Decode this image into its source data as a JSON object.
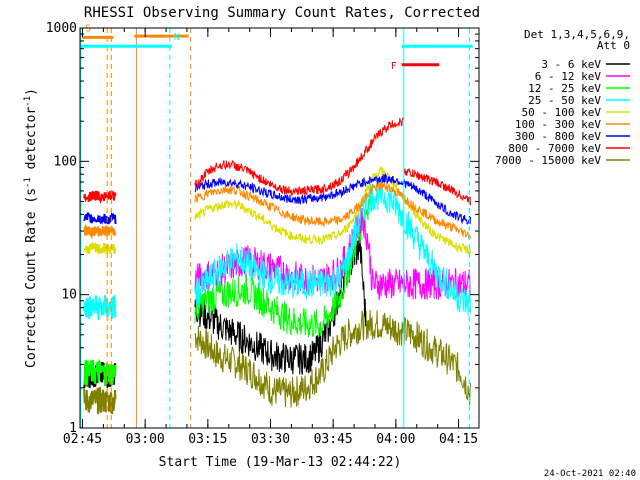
{
  "chart_data": {
    "type": "line",
    "title": "RHESSI Observing Summary Count Rates, Corrected",
    "xlabel": "Start Time (19-Mar-13 02:44:22)",
    "ylabel": "Corrected Count Rate (s",
    "ylabel_sup1": "-1",
    "ylabel_mid": " detector",
    "ylabel_sup2": "-1",
    "ylabel_end": ")",
    "x_ticks_labels": [
      "02:45",
      "03:00",
      "03:15",
      "03:30",
      "03:45",
      "04:00",
      "04:15"
    ],
    "x_ticks_minutes": [
      0.6,
      15.6,
      30.6,
      45.6,
      60.6,
      75.6,
      90.6
    ],
    "y_tick_labels": [
      "1",
      "10",
      "100",
      "1000"
    ],
    "y_tick_values": [
      1,
      10,
      100,
      1000
    ],
    "xlim_minutes": [
      0,
      95.5
    ],
    "ylim": [
      1,
      1000
    ],
    "yscale": "log",
    "legend_header": [
      "Det 1,3,4,5,6,9,",
      "Att 0"
    ],
    "legend_position": "top-right, outside plot",
    "series": [
      {
        "name": "3 - 6 keV",
        "color": "#000000",
        "level": 3.5,
        "segments": [
          {
            "t": [
              27.5,
              33,
              40,
              46,
              50,
              54,
              56,
              58,
              60,
              62,
              64,
              66,
              67,
              68.5
            ],
            "v": [
              8,
              6,
              4.5,
              3.5,
              3.3,
              3.3,
              3.5,
              4.5,
              6,
              10,
              15,
              20,
              24,
              6
            ]
          }
        ]
      },
      {
        "name": "6 - 12 keV",
        "color": "#ff00ff",
        "level": 12,
        "segments": [
          {
            "t": [
              27.5,
              33,
              40,
              46,
              50,
              54,
              58,
              62,
              64,
              66,
              67.5,
              69,
              70,
              72,
              74,
              76,
              78,
              80,
              82,
              84,
              86,
              88,
              90,
              92,
              93.5
            ],
            "v": [
              13,
              15,
              18,
              16,
              14,
              13,
              13,
              15,
              20,
              30,
              40,
              25,
              12,
              12,
              12,
              12,
              12,
              12,
              12,
              12,
              12,
              12,
              12,
              12,
              12
            ]
          }
        ]
      },
      {
        "name": "12 - 25 keV",
        "color": "#00ff00",
        "level": 6,
        "segments": [
          {
            "t": [
              27.5,
              33,
              40,
              46,
              50,
              54,
              58,
              62,
              64,
              66,
              68,
              70
            ],
            "v": [
              8,
              10,
              11,
              8,
              6.5,
              6,
              6,
              9,
              15,
              25,
              40,
              58
            ]
          }
        ]
      },
      {
        "name": "25 - 50 keV",
        "color": "#00ffff",
        "level": 8,
        "segments": [
          {
            "t": [
              27.5,
              31,
              35,
              38,
              42,
              46,
              50,
              54,
              58,
              62,
              64,
              66,
              68,
              69.5
            ],
            "v": [
              10,
              13,
              17,
              19,
              15,
              13,
              12,
              12,
              12,
              13,
              18,
              30,
              45,
              55
            ]
          },
          {
            "t": [
              69.5,
              72,
              74,
              76,
              78,
              80,
              82,
              84,
              86,
              88,
              90,
              92,
              93.5
            ],
            "v": [
              55,
              56,
              53,
              45,
              36,
              28,
              22,
              17,
              14,
              12,
              10,
              9,
              8.5
            ]
          }
        ]
      },
      {
        "name": "50 - 100 keV",
        "color": "#dddd00",
        "level": 22,
        "segments": [
          {
            "t": [
              27.5,
              31,
              35,
              38,
              42,
              46,
              50,
              54,
              58,
              62,
              64,
              66,
              68,
              70,
              72,
              74,
              76,
              78,
              80,
              82,
              84,
              86,
              88,
              90,
              92,
              93.5
            ],
            "v": [
              38,
              44,
              48,
              47,
              40,
              33,
              28,
              26,
              26,
              28,
              32,
              40,
              55,
              75,
              85,
              76,
              62,
              50,
              42,
              35,
              30,
              27,
              25,
              23,
              22,
              21
            ]
          }
        ]
      },
      {
        "name": "100 - 300 keV",
        "color": "#ff8800",
        "level": 30,
        "segments": [
          {
            "t": [
              27.5,
              31,
              35,
              38,
              42,
              46,
              50,
              54,
              58,
              62,
              64,
              66,
              68,
              70,
              72,
              74,
              76,
              78,
              80,
              82,
              84,
              86,
              88,
              90,
              92,
              93.5
            ],
            "v": [
              52,
              58,
              62,
              60,
              52,
              45,
              39,
              36,
              35,
              36,
              39,
              44,
              52,
              62,
              66,
              64,
              58,
              52,
              46,
              42,
              38,
              35,
              33,
              31,
              29,
              28
            ]
          }
        ]
      },
      {
        "name": "300 - 800 keV",
        "color": "#0000ff",
        "level": 37,
        "segments": [
          {
            "t": [
              27.5,
              31,
              35,
              38,
              42,
              46,
              50,
              54,
              58,
              62,
              64,
              66,
              68,
              70,
              72,
              74,
              76,
              78,
              80,
              82,
              84,
              86,
              88,
              90,
              92,
              93.5
            ],
            "v": [
              63,
              68,
              70,
              68,
              62,
              56,
              52,
              52,
              54,
              58,
              62,
              66,
              70,
              73,
              74,
              74,
              72,
              68,
              63,
              58,
              52,
              47,
              42,
              39,
              37,
              36
            ]
          }
        ]
      },
      {
        "name": "800 - 7000 keV",
        "color": "#ff0000",
        "level": 55,
        "segments": [
          {
            "t": [
              27.5,
              30,
              33,
              36,
              39,
              42,
              46,
              50,
              54,
              58,
              62,
              64,
              66,
              68,
              70,
              72,
              74,
              76,
              77.5
            ],
            "v": [
              65,
              80,
              93,
              95,
              88,
              78,
              66,
              60,
              60,
              62,
              70,
              80,
              95,
              115,
              140,
              165,
              185,
              195,
              198
            ]
          },
          {
            "t": [
              77.5,
              80,
              82,
              84,
              86,
              88,
              90,
              92,
              93.5
            ],
            "v": [
              85,
              80,
              76,
              72,
              68,
              63,
              58,
              54,
              50
            ]
          }
        ]
      },
      {
        "name": "7000 - 15000 keV",
        "color": "#808000",
        "level": 2.6,
        "segments": [
          {
            "t": [
              27.5,
              33,
              38,
              42,
              46,
              50,
              54,
              58,
              61,
              64,
              66,
              68
            ],
            "v": [
              5,
              3.5,
              3,
              2.5,
              1.9,
              1.8,
              2.0,
              2.6,
              4,
              5,
              5.5,
              6
            ]
          },
          {
            "t": [
              68,
              72,
              76,
              80,
              84,
              88,
              91,
              93.5
            ],
            "v": [
              6,
              6,
              5.5,
              5,
              4,
              3.3,
              2.7,
              1.8
            ]
          }
        ]
      }
    ],
    "pre_interval": {
      "t": [
        1,
        8.5
      ],
      "values": {
        "800 - 7000 keV": 55,
        "300 - 800 keV": 37,
        "100 - 300 keV": 30,
        "50 - 100 keV": 22,
        "25 - 50 keV": 8,
        "12 - 25 keV": 2.6,
        "3 - 6 keV": 2.5,
        "7000 - 15000 keV": 1.6
      }
    },
    "flags": [
      {
        "label": "S",
        "color": "#ff8800",
        "t": [
          0.5,
          8
        ],
        "v": 850
      },
      {
        "label": "",
        "color": "#ff8800",
        "t": [
          13,
          26
        ],
        "v": 870
      },
      {
        "label": "N",
        "color": "#00ffff",
        "t": [
          0,
          22
        ],
        "v": 730
      },
      {
        "label": "F",
        "color": "#ff0000",
        "t": [
          77,
          86
        ],
        "v": 530
      },
      {
        "label": "",
        "color": "#00ffff",
        "t": [
          77,
          94
        ],
        "v": 730
      }
    ],
    "vlines": [
      {
        "t": 0.2,
        "color": "#00ffff",
        "dash": false
      },
      {
        "t": 6.5,
        "color": "#ff8800",
        "dash": true
      },
      {
        "t": 7.5,
        "color": "#ff8800",
        "dash": true
      },
      {
        "t": 13.5,
        "color": "#ff8800",
        "dash": false
      },
      {
        "t": 21.5,
        "color": "#00ffff",
        "dash": true
      },
      {
        "t": 26.5,
        "color": "#ff8800",
        "dash": true
      },
      {
        "t": 77.5,
        "color": "#00ffff",
        "dash": false
      },
      {
        "t": 93.2,
        "color": "#00ffff",
        "dash": true
      }
    ],
    "grid": false
  },
  "footer": {
    "timestamp": "24-Oct-2021 02:40"
  }
}
